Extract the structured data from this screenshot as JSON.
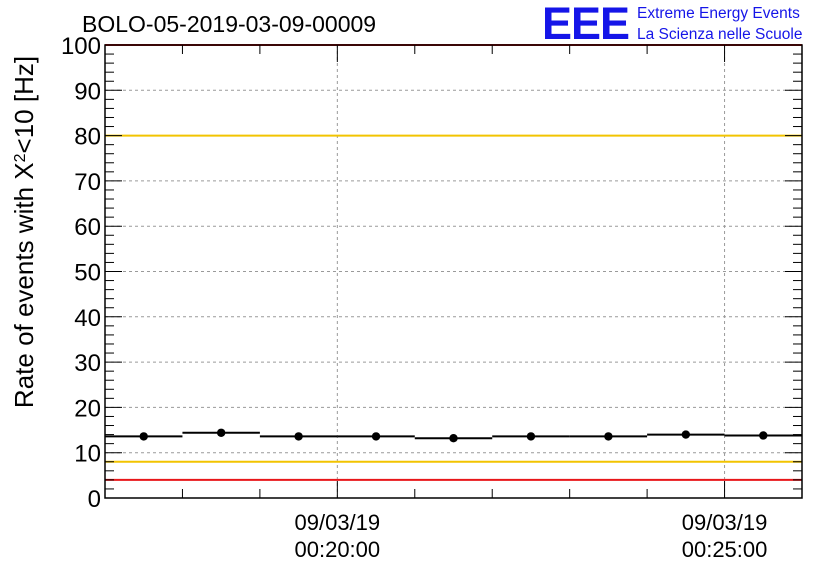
{
  "chart_data": {
    "type": "scatter",
    "title": "BOLO-05-2019-03-09-00009",
    "ylabel": "Rate of events with X²<10 [Hz]",
    "ylabel_base": "Rate of events with X",
    "ylabel_sup": "2",
    "ylabel_tail": "<10 [Hz]",
    "xlabel": "",
    "xlim": [
      "2019-03-09 00:17:00",
      "2019-03-09 00:26:00"
    ],
    "ylim": [
      0,
      100
    ],
    "yticks": [
      0,
      10,
      20,
      30,
      40,
      50,
      60,
      70,
      80,
      90,
      100
    ],
    "xticks": [
      {
        "time": "2019-03-09 00:20:00",
        "date_label": "09/03/19",
        "time_label": "00:20:00"
      },
      {
        "time": "2019-03-09 00:25:00",
        "date_label": "09/03/19",
        "time_label": "00:25:00"
      }
    ],
    "grid": true,
    "points": [
      {
        "start": "2019-03-09 00:17:00",
        "end": "2019-03-09 00:18:00",
        "x": "2019-03-09 00:17:30",
        "y": 13.6
      },
      {
        "start": "2019-03-09 00:18:00",
        "end": "2019-03-09 00:19:00",
        "x": "2019-03-09 00:18:30",
        "y": 14.4
      },
      {
        "start": "2019-03-09 00:19:00",
        "end": "2019-03-09 00:20:00",
        "x": "2019-03-09 00:19:30",
        "y": 13.6
      },
      {
        "start": "2019-03-09 00:20:00",
        "end": "2019-03-09 00:21:00",
        "x": "2019-03-09 00:20:30",
        "y": 13.6
      },
      {
        "start": "2019-03-09 00:21:00",
        "end": "2019-03-09 00:22:00",
        "x": "2019-03-09 00:21:30",
        "y": 13.2
      },
      {
        "start": "2019-03-09 00:22:00",
        "end": "2019-03-09 00:23:00",
        "x": "2019-03-09 00:22:30",
        "y": 13.6
      },
      {
        "start": "2019-03-09 00:23:00",
        "end": "2019-03-09 00:24:00",
        "x": "2019-03-09 00:23:30",
        "y": 13.6
      },
      {
        "start": "2019-03-09 00:24:00",
        "end": "2019-03-09 00:25:00",
        "x": "2019-03-09 00:24:30",
        "y": 14.0
      },
      {
        "start": "2019-03-09 00:25:00",
        "end": "2019-03-09 00:26:00",
        "x": "2019-03-09 00:25:30",
        "y": 13.8
      }
    ],
    "reference_lines": [
      {
        "y": 100,
        "color": "#e8161a"
      },
      {
        "y": 80,
        "color": "#f2c400"
      },
      {
        "y": 8,
        "color": "#f2c400"
      },
      {
        "y": 4,
        "color": "#e8161a"
      }
    ],
    "marker_color": "#000000",
    "grid_color": "#9a9a9a"
  },
  "logo": {
    "letters": "EEE",
    "line1": "Extreme Energy Events",
    "line2": "La Scienza nelle Scuole",
    "color": "#1515e8"
  }
}
